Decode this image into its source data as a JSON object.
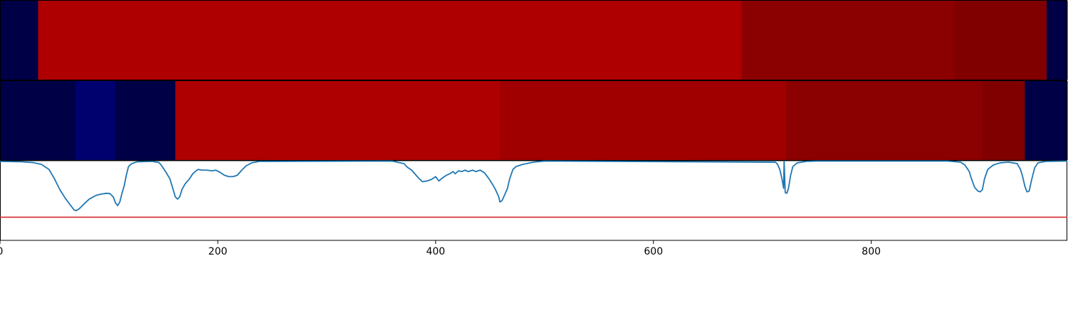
{
  "chart_data": [
    {
      "type": "heatmap",
      "panel": "top",
      "colormap": "seismic",
      "segments": [
        {
          "start": 0,
          "end": 35,
          "color": "#000046"
        },
        {
          "start": 35,
          "end": 681,
          "color": "#ae0000"
        },
        {
          "start": 681,
          "end": 876,
          "color": "#8b0000"
        },
        {
          "start": 876,
          "end": 961,
          "color": "#800000"
        },
        {
          "start": 961,
          "end": 980,
          "color": "#000046"
        }
      ]
    },
    {
      "type": "heatmap",
      "panel": "middle",
      "colormap": "seismic",
      "segments": [
        {
          "start": 0,
          "end": 69,
          "color": "#000046"
        },
        {
          "start": 69,
          "end": 106,
          "color": "#00006e"
        },
        {
          "start": 106,
          "end": 161,
          "color": "#000046"
        },
        {
          "start": 161,
          "end": 459,
          "color": "#ae0000"
        },
        {
          "start": 459,
          "end": 722,
          "color": "#a00000"
        },
        {
          "start": 722,
          "end": 902,
          "color": "#8b0000"
        },
        {
          "start": 902,
          "end": 941,
          "color": "#800000"
        },
        {
          "start": 941,
          "end": 980,
          "color": "#000046"
        }
      ]
    },
    {
      "type": "line",
      "panel": "bottom",
      "xlim": [
        0,
        980
      ],
      "ylim": [
        -0.1,
        1.0
      ],
      "x_ticks": [
        0,
        200,
        400,
        600,
        800
      ],
      "x_tick_labels": [
        "0",
        "200",
        "400",
        "600",
        "800"
      ],
      "threshold": {
        "value": 0.22,
        "color": "#d62728"
      },
      "series": [
        {
          "color": "#1f77b4",
          "points": [
            [
              0,
              0.99
            ],
            [
              20,
              0.985
            ],
            [
              30,
              0.975
            ],
            [
              38,
              0.95
            ],
            [
              45,
              0.88
            ],
            [
              50,
              0.75
            ],
            [
              55,
              0.6
            ],
            [
              60,
              0.48
            ],
            [
              65,
              0.38
            ],
            [
              68,
              0.32
            ],
            [
              70,
              0.31
            ],
            [
              73,
              0.34
            ],
            [
              77,
              0.4
            ],
            [
              82,
              0.47
            ],
            [
              88,
              0.52
            ],
            [
              93,
              0.54
            ],
            [
              98,
              0.55
            ],
            [
              101,
              0.545
            ],
            [
              104,
              0.5
            ],
            [
              106,
              0.42
            ],
            [
              108,
              0.38
            ],
            [
              110,
              0.43
            ],
            [
              112,
              0.55
            ],
            [
              114,
              0.65
            ],
            [
              116,
              0.8
            ],
            [
              118,
              0.92
            ],
            [
              121,
              0.96
            ],
            [
              126,
              0.985
            ],
            [
              140,
              0.99
            ],
            [
              146,
              0.975
            ],
            [
              148,
              0.94
            ],
            [
              152,
              0.85
            ],
            [
              156,
              0.75
            ],
            [
              159,
              0.6
            ],
            [
              161,
              0.5
            ],
            [
              163,
              0.47
            ],
            [
              165,
              0.5
            ],
            [
              167,
              0.6
            ],
            [
              170,
              0.68
            ],
            [
              174,
              0.75
            ],
            [
              177,
              0.82
            ],
            [
              180,
              0.86
            ],
            [
              182,
              0.88
            ],
            [
              185,
              0.87
            ],
            [
              190,
              0.87
            ],
            [
              195,
              0.86
            ],
            [
              198,
              0.87
            ],
            [
              202,
              0.84
            ],
            [
              206,
              0.8
            ],
            [
              210,
              0.78
            ],
            [
              214,
              0.78
            ],
            [
              218,
              0.8
            ],
            [
              222,
              0.87
            ],
            [
              226,
              0.93
            ],
            [
              231,
              0.97
            ],
            [
              238,
              0.99
            ],
            [
              360,
              0.995
            ],
            [
              371,
              0.96
            ],
            [
              374,
              0.91
            ],
            [
              378,
              0.87
            ],
            [
              382,
              0.8
            ],
            [
              385,
              0.75
            ],
            [
              388,
              0.71
            ],
            [
              392,
              0.72
            ],
            [
              396,
              0.74
            ],
            [
              400,
              0.78
            ],
            [
              403,
              0.72
            ],
            [
              406,
              0.76
            ],
            [
              410,
              0.8
            ],
            [
              413,
              0.82
            ],
            [
              416,
              0.85
            ],
            [
              418,
              0.82
            ],
            [
              421,
              0.86
            ],
            [
              424,
              0.85
            ],
            [
              427,
              0.87
            ],
            [
              430,
              0.85
            ],
            [
              434,
              0.87
            ],
            [
              437,
              0.85
            ],
            [
              441,
              0.87
            ],
            [
              445,
              0.83
            ],
            [
              449,
              0.75
            ],
            [
              452,
              0.68
            ],
            [
              455,
              0.6
            ],
            [
              458,
              0.5
            ],
            [
              459,
              0.43
            ],
            [
              461,
              0.45
            ],
            [
              464,
              0.55
            ],
            [
              466,
              0.62
            ],
            [
              468,
              0.75
            ],
            [
              471,
              0.88
            ],
            [
              474,
              0.92
            ],
            [
              480,
              0.95
            ],
            [
              490,
              0.98
            ],
            [
              500,
              0.995
            ],
            [
              720,
              0.995
            ],
            [
              712,
              0.98
            ],
            [
              714,
              0.95
            ],
            [
              716,
              0.88
            ],
            [
              718,
              0.75
            ],
            [
              719.5,
              0.62
            ],
            [
              721,
              0.56
            ],
            [
              722.5,
              0.55
            ],
            [
              724,
              0.62
            ],
            [
              726,
              0.8
            ],
            [
              728,
              0.92
            ],
            [
              732,
              0.97
            ],
            [
              740,
              0.99
            ],
            [
              750,
              0.995
            ],
            [
              870,
              0.995
            ],
            [
              882,
              0.98
            ],
            [
              886,
              0.94
            ],
            [
              890,
              0.85
            ],
            [
              892,
              0.75
            ],
            [
              895,
              0.63
            ],
            [
              898,
              0.58
            ],
            [
              900,
              0.57
            ],
            [
              902,
              0.6
            ],
            [
              904,
              0.75
            ],
            [
              907,
              0.88
            ],
            [
              912,
              0.94
            ],
            [
              918,
              0.97
            ],
            [
              926,
              0.98
            ],
            [
              934,
              0.96
            ],
            [
              937,
              0.88
            ],
            [
              939,
              0.78
            ],
            [
              941,
              0.65
            ],
            [
              943,
              0.57
            ],
            [
              945,
              0.58
            ],
            [
              947,
              0.72
            ],
            [
              950,
              0.9
            ],
            [
              953,
              0.97
            ],
            [
              960,
              0.99
            ],
            [
              980,
              0.995
            ]
          ]
        }
      ]
    }
  ]
}
